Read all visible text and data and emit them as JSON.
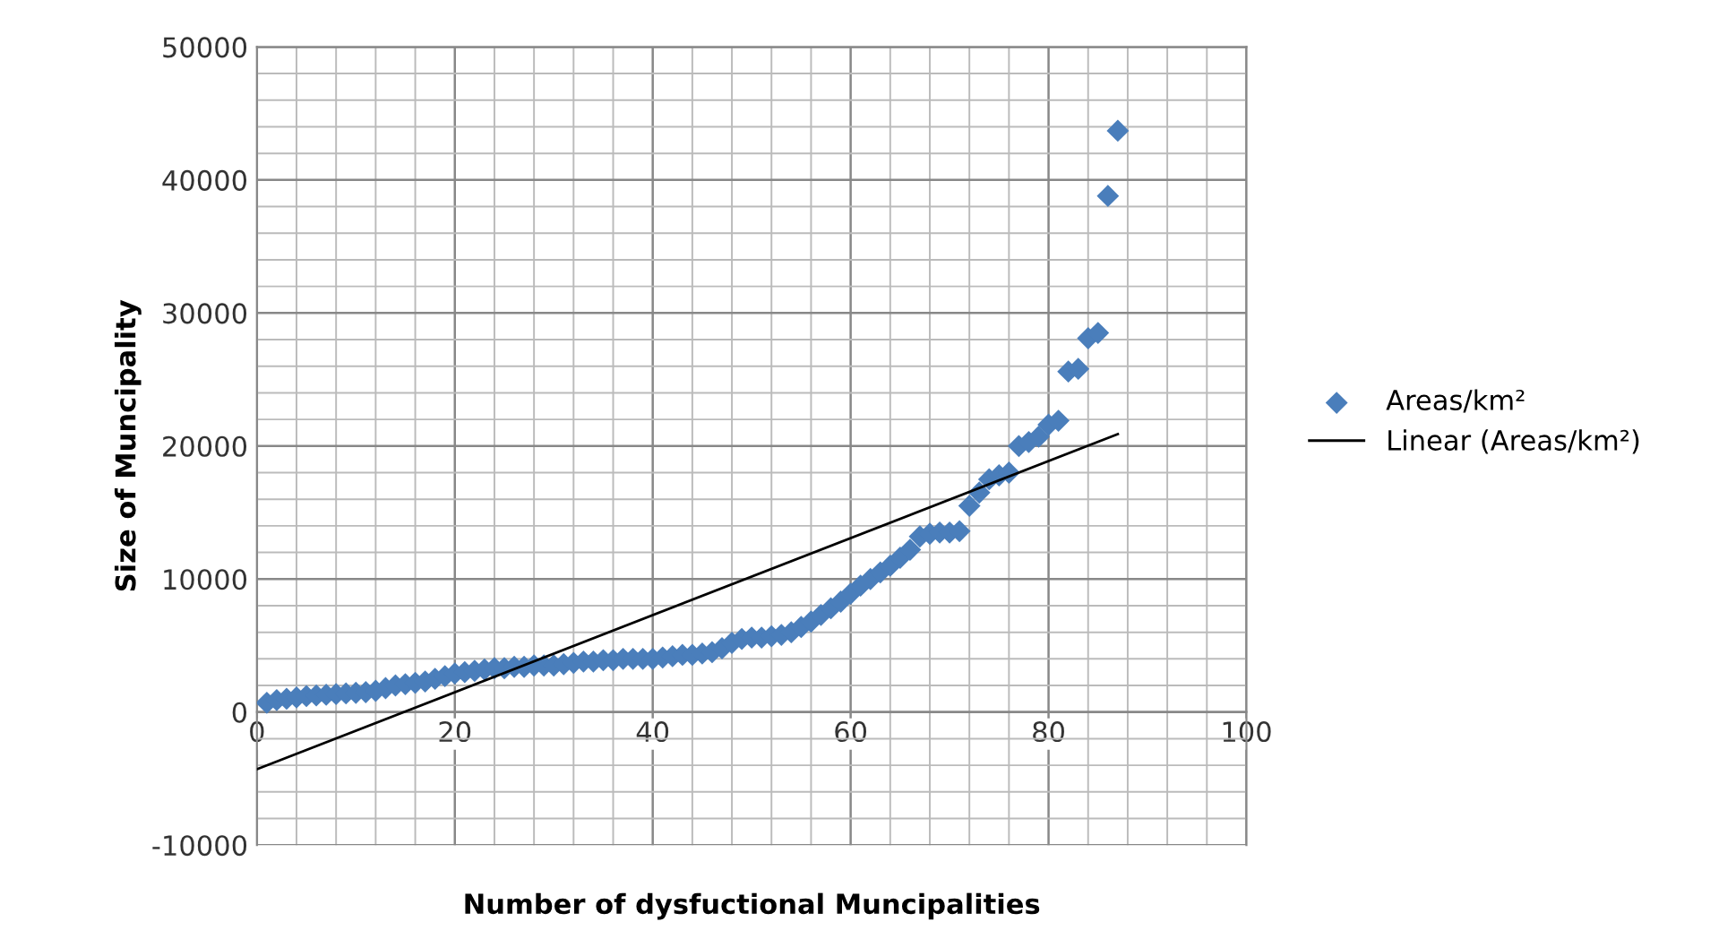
{
  "chart_data": {
    "type": "scatter",
    "xlabel": "Number of dysfuctional Muncipalities",
    "ylabel": "Size of Muncipality",
    "xlim": [
      0,
      100
    ],
    "xticks": [
      0,
      20,
      40,
      60,
      80,
      100
    ],
    "ylim": [
      -10000,
      50000
    ],
    "yticks": [
      -10000,
      0,
      10000,
      20000,
      30000,
      40000,
      50000
    ],
    "grid": true,
    "legend": "right",
    "marker": "diamond",
    "series": [
      {
        "name": "Areas/km²",
        "color": "#4a7ebb",
        "x": [
          1,
          2,
          3,
          4,
          5,
          6,
          7,
          8,
          9,
          10,
          11,
          12,
          13,
          14,
          15,
          16,
          17,
          18,
          19,
          20,
          21,
          22,
          23,
          24,
          25,
          26,
          27,
          28,
          29,
          30,
          31,
          32,
          33,
          34,
          35,
          36,
          37,
          38,
          39,
          40,
          41,
          42,
          43,
          44,
          45,
          46,
          47,
          48,
          49,
          50,
          51,
          52,
          53,
          54,
          55,
          56,
          57,
          58,
          59,
          60,
          61,
          62,
          63,
          64,
          65,
          66,
          67,
          68,
          69,
          70,
          71,
          72,
          73,
          74,
          75,
          76,
          77,
          78,
          79,
          80,
          81,
          82,
          83,
          84,
          85,
          86,
          87
        ],
        "values": [
          700,
          900,
          1000,
          1100,
          1200,
          1250,
          1300,
          1350,
          1400,
          1450,
          1500,
          1600,
          1800,
          2000,
          2100,
          2200,
          2300,
          2500,
          2700,
          2900,
          3000,
          3100,
          3200,
          3300,
          3300,
          3400,
          3400,
          3500,
          3500,
          3500,
          3600,
          3700,
          3800,
          3800,
          3900,
          3900,
          4000,
          4000,
          4000,
          4000,
          4100,
          4200,
          4300,
          4300,
          4400,
          4500,
          4800,
          5200,
          5500,
          5600,
          5600,
          5700,
          5800,
          6000,
          6400,
          6800,
          7300,
          7800,
          8300,
          8900,
          9500,
          10000,
          10500,
          11000,
          11600,
          12200,
          13200,
          13400,
          13500,
          13500,
          13600,
          15500,
          16500,
          17500,
          17800,
          18000,
          20000,
          20300,
          20700,
          21600,
          21900,
          25600,
          25800,
          28100,
          28500,
          38800,
          43700
        ]
      },
      {
        "name": "Linear (Areas/km²)",
        "type": "line",
        "color": "#000000",
        "marker": "none",
        "x": [
          0,
          87
        ],
        "values": [
          -4300,
          20900
        ]
      }
    ]
  }
}
